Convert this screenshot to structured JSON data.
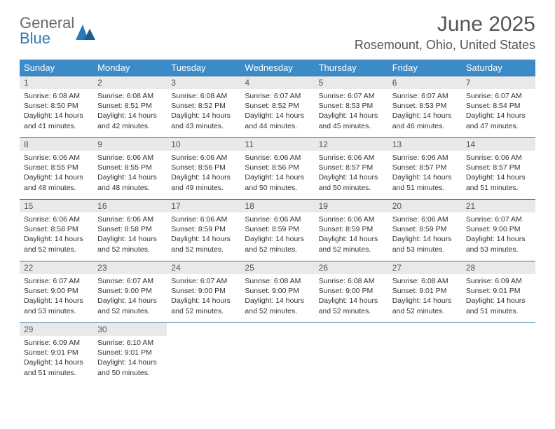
{
  "logo": {
    "word1": "General",
    "word2": "Blue"
  },
  "title": "June 2025",
  "location": "Rosemount, Ohio, United States",
  "colors": {
    "header_bg": "#3b8bc8",
    "header_text": "#ffffff",
    "daynum_bg": "#e9e9e9",
    "border": "#3b7aa8",
    "logo_gray": "#6a6a6a",
    "logo_blue": "#2a7ab9"
  },
  "weekdays": [
    "Sunday",
    "Monday",
    "Tuesday",
    "Wednesday",
    "Thursday",
    "Friday",
    "Saturday"
  ],
  "weeks": [
    [
      {
        "n": "1",
        "sr": "6:08 AM",
        "ss": "8:50 PM",
        "dl": "14 hours and 41 minutes."
      },
      {
        "n": "2",
        "sr": "6:08 AM",
        "ss": "8:51 PM",
        "dl": "14 hours and 42 minutes."
      },
      {
        "n": "3",
        "sr": "6:08 AM",
        "ss": "8:52 PM",
        "dl": "14 hours and 43 minutes."
      },
      {
        "n": "4",
        "sr": "6:07 AM",
        "ss": "8:52 PM",
        "dl": "14 hours and 44 minutes."
      },
      {
        "n": "5",
        "sr": "6:07 AM",
        "ss": "8:53 PM",
        "dl": "14 hours and 45 minutes."
      },
      {
        "n": "6",
        "sr": "6:07 AM",
        "ss": "8:53 PM",
        "dl": "14 hours and 46 minutes."
      },
      {
        "n": "7",
        "sr": "6:07 AM",
        "ss": "8:54 PM",
        "dl": "14 hours and 47 minutes."
      }
    ],
    [
      {
        "n": "8",
        "sr": "6:06 AM",
        "ss": "8:55 PM",
        "dl": "14 hours and 48 minutes."
      },
      {
        "n": "9",
        "sr": "6:06 AM",
        "ss": "8:55 PM",
        "dl": "14 hours and 48 minutes."
      },
      {
        "n": "10",
        "sr": "6:06 AM",
        "ss": "8:56 PM",
        "dl": "14 hours and 49 minutes."
      },
      {
        "n": "11",
        "sr": "6:06 AM",
        "ss": "8:56 PM",
        "dl": "14 hours and 50 minutes."
      },
      {
        "n": "12",
        "sr": "6:06 AM",
        "ss": "8:57 PM",
        "dl": "14 hours and 50 minutes."
      },
      {
        "n": "13",
        "sr": "6:06 AM",
        "ss": "8:57 PM",
        "dl": "14 hours and 51 minutes."
      },
      {
        "n": "14",
        "sr": "6:06 AM",
        "ss": "8:57 PM",
        "dl": "14 hours and 51 minutes."
      }
    ],
    [
      {
        "n": "15",
        "sr": "6:06 AM",
        "ss": "8:58 PM",
        "dl": "14 hours and 52 minutes."
      },
      {
        "n": "16",
        "sr": "6:06 AM",
        "ss": "8:58 PM",
        "dl": "14 hours and 52 minutes."
      },
      {
        "n": "17",
        "sr": "6:06 AM",
        "ss": "8:59 PM",
        "dl": "14 hours and 52 minutes."
      },
      {
        "n": "18",
        "sr": "6:06 AM",
        "ss": "8:59 PM",
        "dl": "14 hours and 52 minutes."
      },
      {
        "n": "19",
        "sr": "6:06 AM",
        "ss": "8:59 PM",
        "dl": "14 hours and 52 minutes."
      },
      {
        "n": "20",
        "sr": "6:06 AM",
        "ss": "8:59 PM",
        "dl": "14 hours and 53 minutes."
      },
      {
        "n": "21",
        "sr": "6:07 AM",
        "ss": "9:00 PM",
        "dl": "14 hours and 53 minutes."
      }
    ],
    [
      {
        "n": "22",
        "sr": "6:07 AM",
        "ss": "9:00 PM",
        "dl": "14 hours and 53 minutes."
      },
      {
        "n": "23",
        "sr": "6:07 AM",
        "ss": "9:00 PM",
        "dl": "14 hours and 52 minutes."
      },
      {
        "n": "24",
        "sr": "6:07 AM",
        "ss": "9:00 PM",
        "dl": "14 hours and 52 minutes."
      },
      {
        "n": "25",
        "sr": "6:08 AM",
        "ss": "9:00 PM",
        "dl": "14 hours and 52 minutes."
      },
      {
        "n": "26",
        "sr": "6:08 AM",
        "ss": "9:00 PM",
        "dl": "14 hours and 52 minutes."
      },
      {
        "n": "27",
        "sr": "6:08 AM",
        "ss": "9:01 PM",
        "dl": "14 hours and 52 minutes."
      },
      {
        "n": "28",
        "sr": "6:09 AM",
        "ss": "9:01 PM",
        "dl": "14 hours and 51 minutes."
      }
    ],
    [
      {
        "n": "29",
        "sr": "6:09 AM",
        "ss": "9:01 PM",
        "dl": "14 hours and 51 minutes."
      },
      {
        "n": "30",
        "sr": "6:10 AM",
        "ss": "9:01 PM",
        "dl": "14 hours and 50 minutes."
      },
      null,
      null,
      null,
      null,
      null
    ]
  ],
  "labels": {
    "sunrise": "Sunrise: ",
    "sunset": "Sunset: ",
    "daylight": "Daylight: "
  }
}
